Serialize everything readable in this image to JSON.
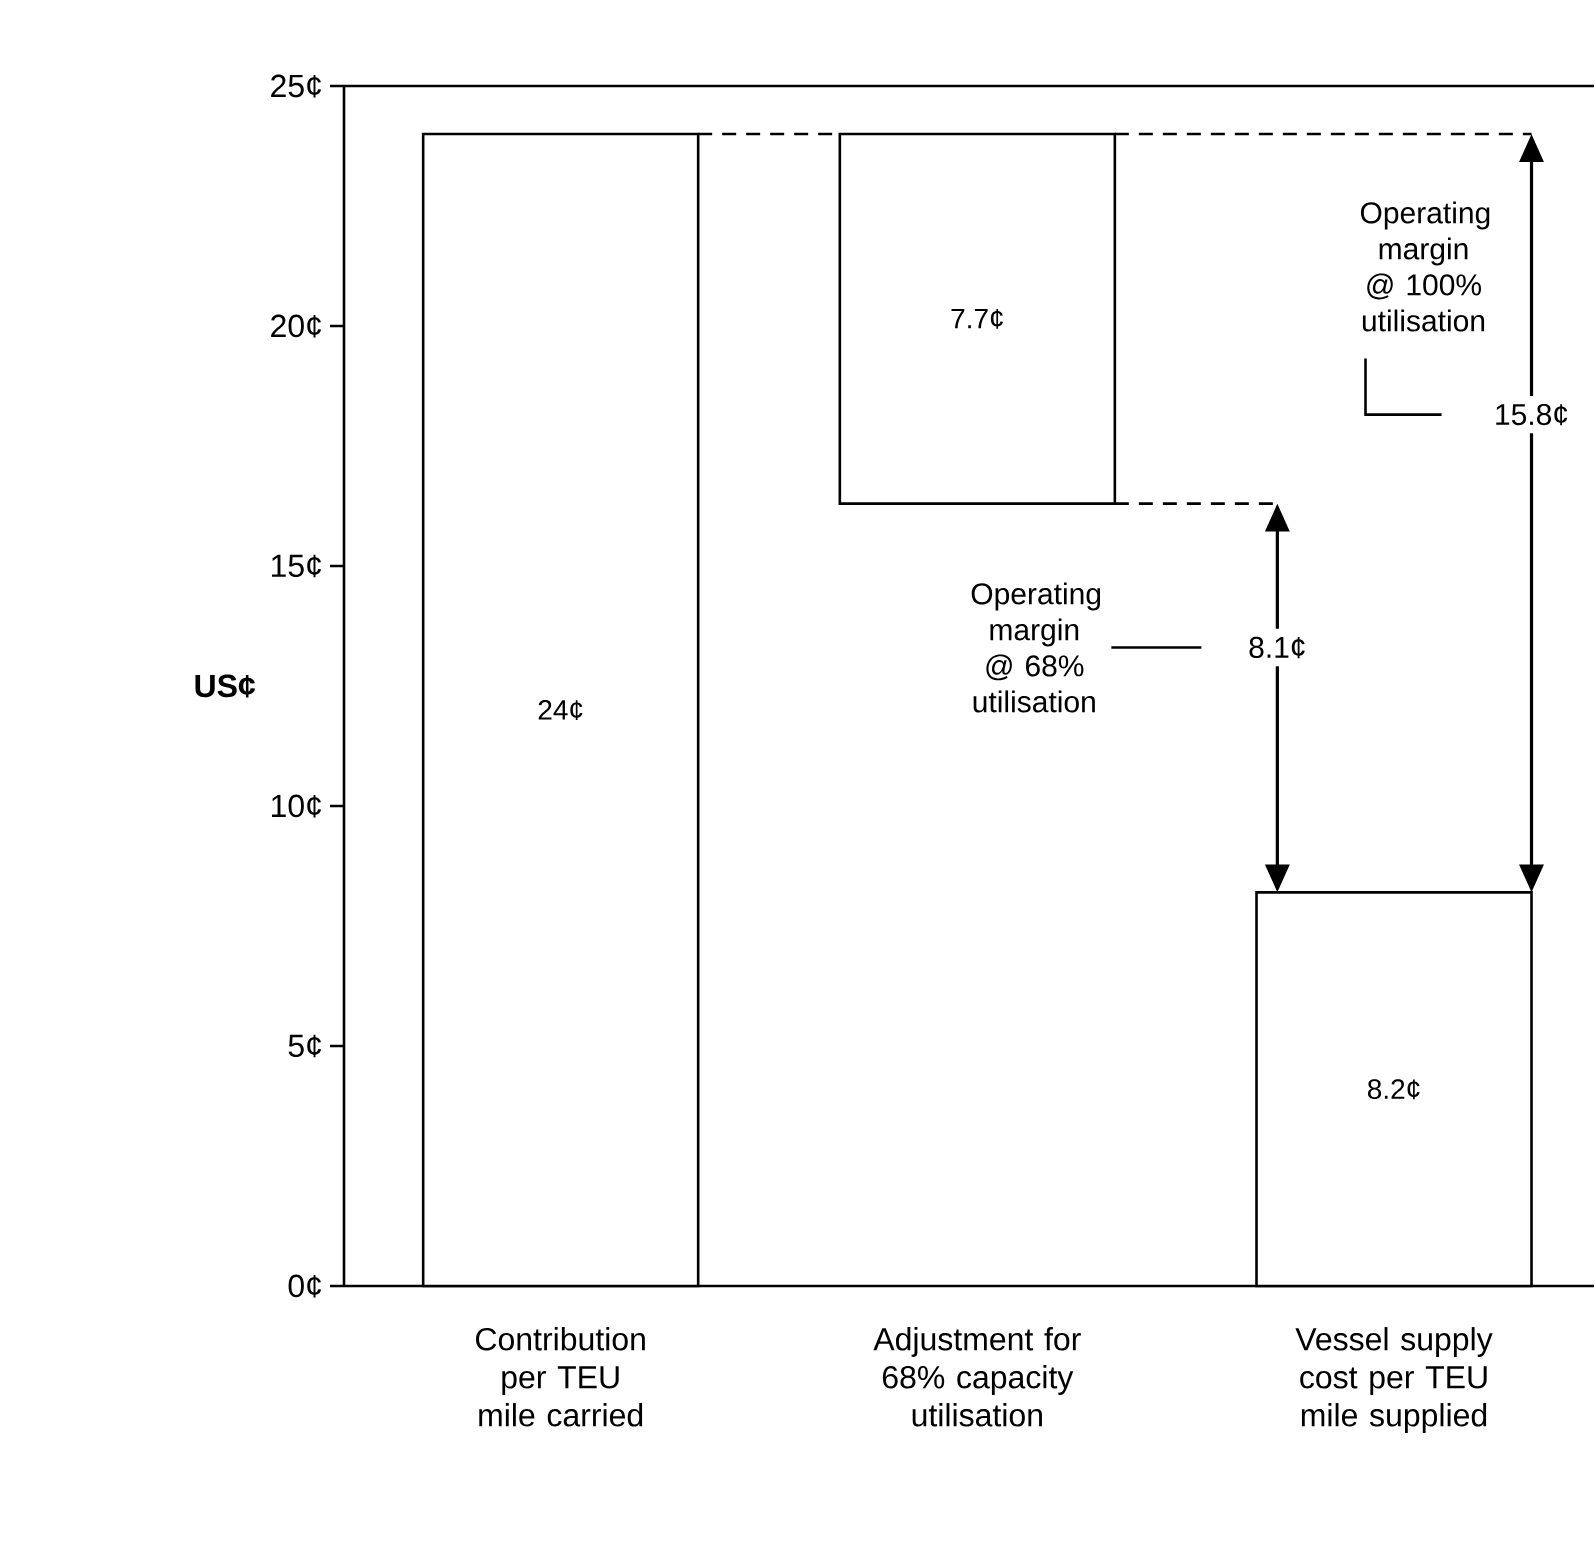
{
  "chart_data": {
    "type": "bar",
    "ylabel": "US¢",
    "categories": [
      "Contribution per TEU mile carried",
      "Adjustment for 68% capacity utilisation",
      "Vessel supply cost per TEU mile supplied"
    ],
    "values": [
      24,
      7.7,
      8.2
    ],
    "base": [
      0,
      16.3,
      0
    ],
    "color": "#ffffff",
    "value_labels": [
      "24¢",
      "7.7¢",
      "8.2¢"
    ],
    "ylim": [
      0,
      25
    ],
    "yticks": [
      {
        "value": 0,
        "label": "0¢"
      },
      {
        "value": 5,
        "label": "5¢"
      },
      {
        "value": 10,
        "label": "10¢"
      },
      {
        "value": 15,
        "label": "15¢"
      },
      {
        "value": 20,
        "label": "20¢"
      },
      {
        "value": 25,
        "label": "25¢"
      }
    ],
    "annotations": [
      "Operating margin @ 68% utilisation",
      "8.1¢",
      "Operating margin @ 100% utilisation",
      "15.8¢"
    ]
  }
}
